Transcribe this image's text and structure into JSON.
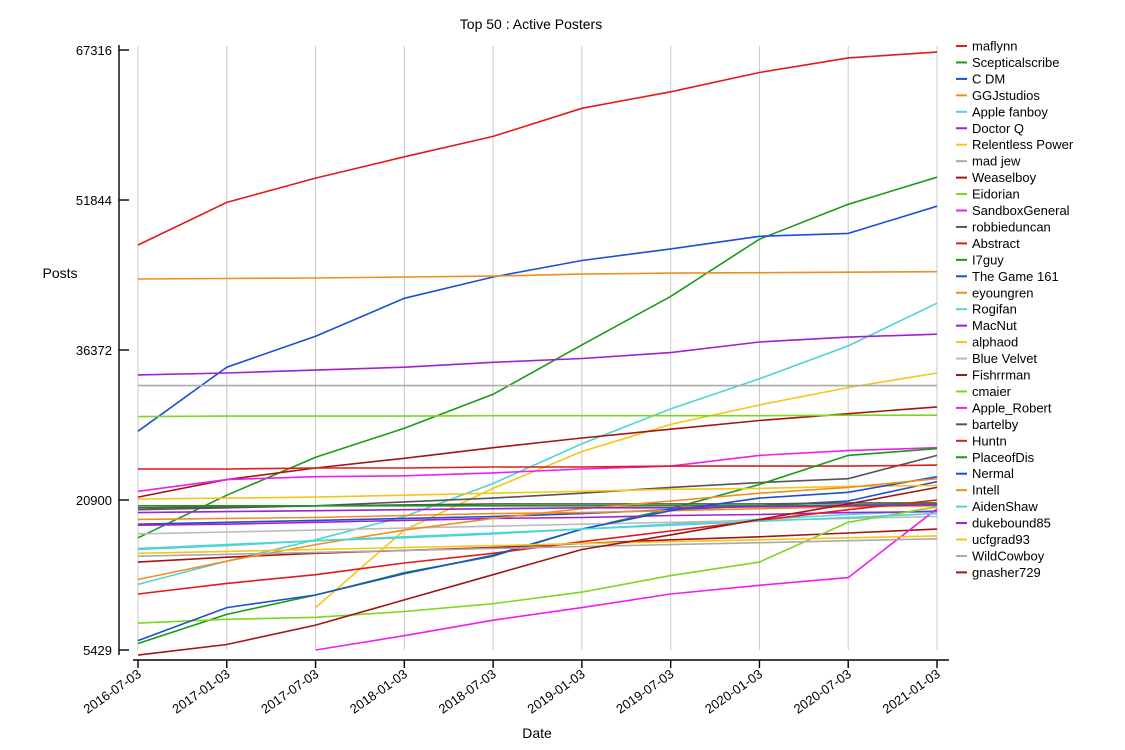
{
  "chart_data": {
    "type": "line",
    "title": "Top 50 : Active Posters",
    "xlabel": "Date",
    "ylabel": "Posts",
    "x": [
      "2016-07-03",
      "2017-01-03",
      "2017-07-03",
      "2018-01-03",
      "2018-07-03",
      "2019-01-03",
      "2019-07-03",
      "2020-01-03",
      "2020-07-03",
      "2021-01-03"
    ],
    "yticks": [
      5429,
      20900,
      36372,
      51844,
      67316
    ],
    "ylim": [
      5429,
      67316
    ],
    "grid": "vertical",
    "legend_position": "right",
    "series": [
      {
        "name": "maflynn",
        "color": "#e31a1c",
        "values": [
          47200,
          51600,
          54100,
          56300,
          58400,
          61300,
          63000,
          65000,
          66500,
          67100
        ]
      },
      {
        "name": "Scepticalscribe",
        "color": "#1a9a1a",
        "values": [
          17000,
          21400,
          25300,
          28300,
          31800,
          36900,
          41900,
          47800,
          51400,
          54200
        ]
      },
      {
        "name": "C DM",
        "color": "#1c4fd6",
        "values": [
          28000,
          34600,
          37800,
          41700,
          43900,
          45600,
          46800,
          48100,
          48400,
          51200
        ]
      },
      {
        "name": "GGJstudios",
        "color": "#f28c1e",
        "values": [
          43700,
          43750,
          43800,
          43900,
          44000,
          44200,
          44300,
          44350,
          44400,
          44450
        ]
      },
      {
        "name": "Apple fanboy",
        "color": "#4fd3d6",
        "values": [
          12200,
          14600,
          16800,
          19200,
          22600,
          26700,
          30300,
          33400,
          36800,
          41200
        ]
      },
      {
        "name": "Doctor Q",
        "color": "#a020d0",
        "values": [
          33800,
          34000,
          34300,
          34600,
          35100,
          35500,
          36100,
          37200,
          37700,
          38000
        ]
      },
      {
        "name": "Relentless Power",
        "color": "#f5c518",
        "values": [
          null,
          null,
          9800,
          17800,
          22100,
          25900,
          28700,
          30700,
          32500,
          34000
        ]
      },
      {
        "name": "mad jew",
        "color": "#aaaaaa",
        "values": [
          32700,
          32700,
          32700,
          32700,
          32700,
          32700,
          32700,
          32700,
          32700,
          32700
        ]
      },
      {
        "name": "Weaselboy",
        "color": "#a31515",
        "values": [
          21200,
          23000,
          24200,
          25200,
          26300,
          27300,
          28200,
          29100,
          29800,
          30500
        ]
      },
      {
        "name": "Eidorian",
        "color": "#7bd81e",
        "values": [
          29500,
          29550,
          29550,
          29550,
          29600,
          29600,
          29600,
          29600,
          29650,
          29650
        ]
      },
      {
        "name": "SandboxGeneral",
        "color": "#f01df0",
        "values": [
          21800,
          23000,
          23300,
          23400,
          23700,
          24100,
          24400,
          25500,
          26000,
          26300
        ]
      },
      {
        "name": "robbieduncan",
        "color": "#555555",
        "values": [
          19900,
          20100,
          20300,
          20700,
          21100,
          21600,
          22200,
          22700,
          23100,
          25500
        ]
      },
      {
        "name": "Abstract",
        "color": "#e31a1c",
        "values": [
          24100,
          24100,
          24200,
          24200,
          24300,
          24300,
          24400,
          24400,
          24400,
          24500
        ]
      },
      {
        "name": "I7guy",
        "color": "#1a9a1a",
        "values": [
          6100,
          9100,
          11100,
          13400,
          15100,
          17900,
          20000,
          22500,
          25500,
          26200
        ]
      },
      {
        "name": "The Game 161",
        "color": "#1c4fd6",
        "values": [
          18400,
          18600,
          18800,
          19000,
          19200,
          19500,
          19900,
          20300,
          20800,
          22800
        ]
      },
      {
        "name": "eyoungren",
        "color": "#f28c1e",
        "values": [
          18900,
          19000,
          19100,
          19300,
          19500,
          19600,
          19800,
          20000,
          20200,
          20300
        ]
      },
      {
        "name": "Rogifan",
        "color": "#4fd3d6",
        "values": [
          15800,
          16200,
          16700,
          17000,
          17400,
          17900,
          18400,
          18900,
          19400,
          19800
        ]
      },
      {
        "name": "MacNut",
        "color": "#a020d0",
        "values": [
          18300,
          18400,
          18600,
          18800,
          19000,
          19100,
          19300,
          19400,
          19600,
          19700
        ]
      },
      {
        "name": "alphaod",
        "color": "#f5c518",
        "values": [
          21000,
          21100,
          21200,
          21400,
          21600,
          21800,
          22000,
          22100,
          22300,
          22400
        ]
      },
      {
        "name": "Blue Velvet",
        "color": "#bbbbbb",
        "values": [
          17400,
          17600,
          17800,
          18000,
          18200,
          18400,
          18600,
          18800,
          19000,
          19200
        ]
      },
      {
        "name": "Fishrrman",
        "color": "#a31515",
        "values": [
          14500,
          15000,
          15400,
          15700,
          16000,
          16400,
          16800,
          17100,
          17500,
          17900
        ]
      },
      {
        "name": "cmaier",
        "color": "#7bd81e",
        "values": [
          8200,
          8600,
          8800,
          9400,
          10200,
          11400,
          13100,
          14500,
          18600,
          20200
        ]
      },
      {
        "name": "Apple_Robert",
        "color": "#f01df0",
        "values": [
          null,
          null,
          5429,
          6900,
          8500,
          9800,
          11200,
          12100,
          12900,
          20000
        ]
      },
      {
        "name": "bartelby",
        "color": "#555555",
        "values": [
          20100,
          20200,
          20300,
          20400,
          20500,
          20500,
          20500,
          20500,
          20600,
          20600
        ]
      },
      {
        "name": "Huntn",
        "color": "#e31a1c",
        "values": [
          11200,
          12300,
          13200,
          14400,
          15400,
          16600,
          17700,
          18800,
          19900,
          20900
        ]
      },
      {
        "name": "PlaceofDis",
        "color": "#1a9a1a",
        "values": [
          20300,
          20300,
          20300,
          20300,
          20300,
          20300,
          20300,
          20300,
          20400,
          20500
        ]
      },
      {
        "name": "Nermal",
        "color": "#1c4fd6",
        "values": [
          6400,
          9800,
          11100,
          13300,
          15200,
          17900,
          19800,
          21100,
          21700,
          23300
        ]
      },
      {
        "name": "Intell",
        "color": "#f28c1e",
        "values": [
          12700,
          14600,
          16300,
          17800,
          19000,
          20000,
          20800,
          21600,
          22200,
          23100
        ]
      },
      {
        "name": "AidenShaw",
        "color": "#4fd3d6",
        "values": [
          15900,
          16300,
          16700,
          17100,
          17500,
          17900,
          18300,
          18700,
          19100,
          19500
        ]
      },
      {
        "name": "dukebound85",
        "color": "#a020d0",
        "values": [
          19600,
          19700,
          19800,
          19900,
          20000,
          20100,
          20100,
          20200,
          20300,
          20400
        ]
      },
      {
        "name": "ucfgrad93",
        "color": "#f5c518",
        "values": [
          15400,
          15600,
          15800,
          16000,
          16200,
          16400,
          16600,
          16800,
          17000,
          17200
        ]
      },
      {
        "name": "WildCowboy",
        "color": "#aaaaaa",
        "values": [
          15100,
          15300,
          15500,
          15700,
          15900,
          16100,
          16300,
          16500,
          16700,
          16900
        ]
      },
      {
        "name": "gnasher729",
        "color": "#a31515",
        "values": [
          4900,
          6000,
          8000,
          10600,
          13200,
          15800,
          17300,
          18900,
          20500,
          22200
        ]
      }
    ]
  }
}
